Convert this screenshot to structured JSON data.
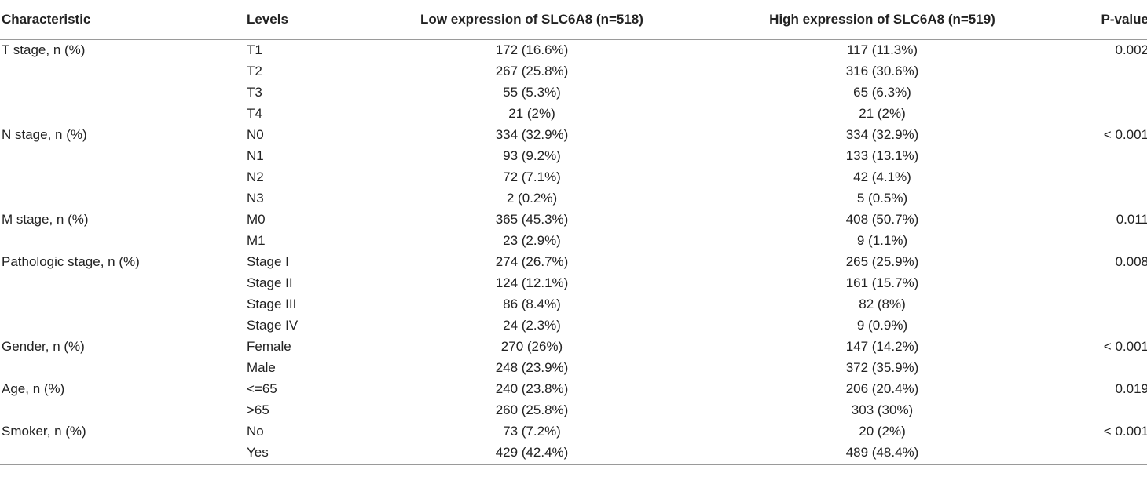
{
  "table": {
    "headers": {
      "characteristic": "Characteristic",
      "levels": "Levels",
      "low": "Low expression of SLC6A8 (n=518)",
      "high": "High expression of SLC6A8 (n=519)",
      "pvalue": "P-value"
    },
    "rows": [
      {
        "characteristic": "T stage, n (%)",
        "level": "T1",
        "low": "172 (16.6%)",
        "high": "117 (11.3%)",
        "p": "0.002"
      },
      {
        "characteristic": "",
        "level": "T2",
        "low": "267 (25.8%)",
        "high": "316 (30.6%)",
        "p": ""
      },
      {
        "characteristic": "",
        "level": "T3",
        "low": "55 (5.3%)",
        "high": "65 (6.3%)",
        "p": ""
      },
      {
        "characteristic": "",
        "level": "T4",
        "low": "21 (2%)",
        "high": "21 (2%)",
        "p": ""
      },
      {
        "characteristic": "N stage, n (%)",
        "level": "N0",
        "low": "334 (32.9%)",
        "high": "334 (32.9%)",
        "p": "< 0.001"
      },
      {
        "characteristic": "",
        "level": "N1",
        "low": "93 (9.2%)",
        "high": "133 (13.1%)",
        "p": ""
      },
      {
        "characteristic": "",
        "level": "N2",
        "low": "72 (7.1%)",
        "high": "42 (4.1%)",
        "p": ""
      },
      {
        "characteristic": "",
        "level": "N3",
        "low": "2 (0.2%)",
        "high": "5 (0.5%)",
        "p": ""
      },
      {
        "characteristic": "M stage, n (%)",
        "level": "M0",
        "low": "365 (45.3%)",
        "high": "408 (50.7%)",
        "p": "0.011"
      },
      {
        "characteristic": "",
        "level": "M1",
        "low": "23 (2.9%)",
        "high": "9 (1.1%)",
        "p": ""
      },
      {
        "characteristic": "Pathologic stage, n (%)",
        "level": "Stage I",
        "low": "274 (26.7%)",
        "high": "265 (25.9%)",
        "p": "0.008"
      },
      {
        "characteristic": "",
        "level": "Stage II",
        "low": "124 (12.1%)",
        "high": "161 (15.7%)",
        "p": ""
      },
      {
        "characteristic": "",
        "level": "Stage III",
        "low": "86 (8.4%)",
        "high": "82 (8%)",
        "p": ""
      },
      {
        "characteristic": "",
        "level": "Stage IV",
        "low": "24 (2.3%)",
        "high": "9 (0.9%)",
        "p": ""
      },
      {
        "characteristic": "Gender, n (%)",
        "level": "Female",
        "low": "270 (26%)",
        "high": "147 (14.2%)",
        "p": "< 0.001"
      },
      {
        "characteristic": "",
        "level": "Male",
        "low": "248 (23.9%)",
        "high": "372 (35.9%)",
        "p": ""
      },
      {
        "characteristic": "Age, n (%)",
        "level": "<=65",
        "low": "240 (23.8%)",
        "high": "206 (20.4%)",
        "p": "0.019"
      },
      {
        "characteristic": "",
        "level": ">65",
        "low": "260 (25.8%)",
        "high": "303 (30%)",
        "p": ""
      },
      {
        "characteristic": "Smoker, n (%)",
        "level": "No",
        "low": "73 (7.2%)",
        "high": "20 (2%)",
        "p": "< 0.001"
      },
      {
        "characteristic": "",
        "level": "Yes",
        "low": "429 (42.4%)",
        "high": "489 (48.4%)",
        "p": ""
      }
    ]
  }
}
